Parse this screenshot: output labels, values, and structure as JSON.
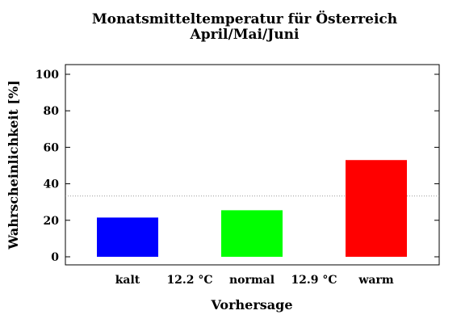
{
  "chart_data": {
    "type": "bar",
    "title_line1": "Monatsmitteltemperatur für Österreich",
    "title_line2": "April/Mai/Juni",
    "xlabel": "Vorhersage",
    "ylabel": "Wahrscheinlichkeit [%]",
    "ylim": [
      -5,
      105
    ],
    "yticks": [
      0,
      20,
      40,
      60,
      80,
      100
    ],
    "categories": [
      "kalt",
      "normal",
      "warm"
    ],
    "values": [
      21.5,
      25.5,
      53
    ],
    "bar_colors": [
      "#0000ff",
      "#00ff00",
      "#ff0000"
    ],
    "thresholds": [
      "12.2 °C",
      "12.9 °C"
    ],
    "reference_line": 33.3,
    "reference_line_style": "dotted gray",
    "grid": false,
    "legend": "none"
  }
}
